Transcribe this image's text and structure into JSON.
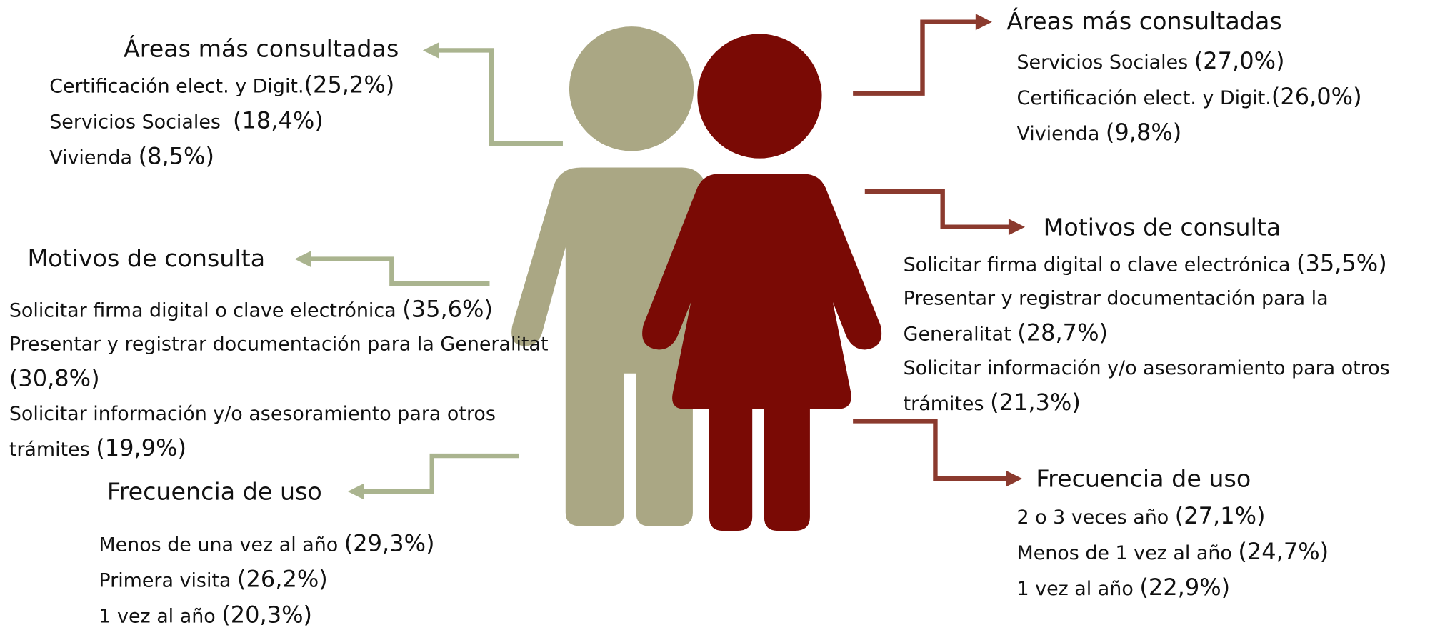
{
  "men": {
    "areas": {
      "title": "Áreas más consultadas",
      "items": [
        {
          "label": "Certificación elect. y Digit.",
          "value": "(25,2%)"
        },
        {
          "label": "Servicios Sociales  ",
          "value": "(18,4%)"
        },
        {
          "label": "Vivienda ",
          "value": "(8,5%)"
        }
      ]
    },
    "motivos": {
      "title": "Motivos de consulta",
      "items": [
        {
          "label": "Solicitar firma digital o clave electrónica ",
          "value": "(35,6%)"
        },
        {
          "label": "Presentar y registrar documentación para la Generalitat ",
          "value": "(30,8%)"
        },
        {
          "label": "Solicitar información y/o asesoramiento para otros trámites ",
          "value": "(19,9%)"
        }
      ]
    },
    "frecuencia": {
      "title": "Frecuencia de uso",
      "items": [
        {
          "label": "Menos de una vez al año ",
          "value": "(29,3%)"
        },
        {
          "label": "Primera visita ",
          "value": "(26,2%)"
        },
        {
          "label": "1 vez al año ",
          "value": "(20,3%)"
        }
      ]
    }
  },
  "women": {
    "areas": {
      "title": "Áreas más consultadas",
      "items": [
        {
          "label": "Servicios Sociales ",
          "value": "(27,0%)"
        },
        {
          "label": "Certificación elect. y Digit.",
          "value": "(26,0%)"
        },
        {
          "label": "Vivienda ",
          "value": "(9,8%)"
        }
      ]
    },
    "motivos": {
      "title": "Motivos de consulta",
      "items": [
        {
          "label": "Solicitar firma digital o clave electrónica ",
          "value": "(35,5%)"
        },
        {
          "label": "Presentar y registrar documentación para la Generalitat ",
          "value": "(28,7%)"
        },
        {
          "label": "Solicitar información y/o asesoramiento para otros trámites ",
          "value": "(21,3%)"
        }
      ]
    },
    "frecuencia": {
      "title": "Frecuencia de uso",
      "items": [
        {
          "label": "2 o 3 veces año ",
          "value": "(27,1%)"
        },
        {
          "label": "Menos de 1 vez al año ",
          "value": "(24,7%)"
        },
        {
          "label": "1 vez al año ",
          "value": "(22,9%)"
        }
      ]
    }
  }
}
